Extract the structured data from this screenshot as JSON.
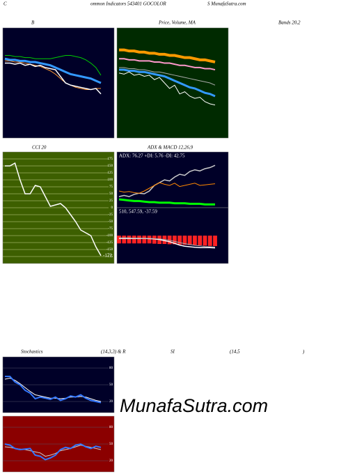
{
  "header": {
    "parts": [
      "C",
      "ommon Indicators 543401 GOCOLOR",
      "S MunafaSutra.com"
    ]
  },
  "watermark": "MunafaSutra.com",
  "chart_data": [
    {
      "type": "line",
      "title_parts": [
        "B",
        "Bands 20,2"
      ],
      "ylim": [
        0,
        100
      ],
      "series": [
        {
          "color": "#00cc00",
          "width": 1,
          "values": [
            75,
            75,
            74,
            74,
            73,
            73,
            72,
            72,
            72,
            72,
            73,
            74,
            75,
            75,
            74,
            73,
            71,
            68,
            64,
            57
          ]
        },
        {
          "color": "#ff9933",
          "width": 1,
          "values": [
            70,
            70,
            69,
            69,
            68,
            67,
            66,
            65,
            63,
            61,
            58,
            54,
            50,
            48,
            46,
            45,
            44,
            44,
            45,
            45
          ]
        },
        {
          "color": "#3399ff",
          "width": 3,
          "values": [
            72,
            71,
            71,
            70,
            70,
            69,
            69,
            68,
            67,
            66,
            64,
            62,
            60,
            58,
            57,
            56,
            55,
            54,
            52,
            50
          ]
        },
        {
          "color": "#ffffff",
          "width": 1.5,
          "values": [
            68,
            68,
            67,
            68,
            66,
            67,
            65,
            66,
            64,
            63,
            62,
            56,
            50,
            48,
            47,
            46,
            45,
            44,
            45,
            40
          ]
        }
      ]
    },
    {
      "type": "line",
      "title_parts": [
        "Price, Volume, MA"
      ],
      "ylim": [
        0,
        100
      ],
      "series": [
        {
          "color": "#ff9900",
          "width": 4,
          "values": [
            80,
            80,
            79,
            79,
            78,
            78,
            77,
            77,
            76,
            76,
            75,
            75,
            74,
            73,
            73,
            72,
            71,
            71,
            70,
            69
          ]
        },
        {
          "color": "#ff99cc",
          "width": 2,
          "values": [
            72,
            72,
            71,
            71,
            70,
            70,
            70,
            69,
            69,
            68,
            68,
            67,
            66,
            66,
            65,
            64,
            64,
            63,
            63,
            62
          ]
        },
        {
          "color": "#aaaaaa",
          "width": 1,
          "values": [
            64,
            64,
            63,
            63,
            62,
            62,
            61,
            60,
            60,
            59,
            58,
            57,
            56,
            55,
            54,
            53,
            52,
            51,
            50,
            48
          ]
        },
        {
          "color": "#3399ff",
          "width": 3,
          "values": [
            62,
            62,
            61,
            61,
            60,
            60,
            59,
            58,
            57,
            56,
            54,
            52,
            50,
            48,
            46,
            45,
            43,
            41,
            40,
            38
          ]
        },
        {
          "color": "#ffffff",
          "width": 1,
          "values": [
            59,
            58,
            60,
            57,
            58,
            56,
            57,
            53,
            55,
            50,
            45,
            48,
            40,
            42,
            38,
            36,
            37,
            33,
            31,
            30
          ]
        }
      ]
    },
    {
      "type": "line",
      "title_parts": [
        "CCI 20"
      ],
      "ylim": [
        -200,
        200
      ],
      "grid": true,
      "yticks": [
        175,
        150,
        125,
        100,
        75,
        50,
        25,
        0,
        -25,
        -50,
        -75,
        -100,
        -125,
        -150,
        -175
      ],
      "end_label": "-172",
      "series": [
        {
          "color": "#ffffff",
          "width": 1.5,
          "values": [
            150,
            150,
            160,
            100,
            50,
            50,
            80,
            75,
            40,
            5,
            10,
            15,
            0,
            -25,
            -50,
            -80,
            -90,
            -100,
            -140,
            -172
          ]
        }
      ]
    },
    {
      "type": "line",
      "title_parts": [
        "ADX  & MACD 12,26,9"
      ],
      "note": "ADX: 76.27  +DI: 5.76  -DI: 42.75",
      "ylim": [
        0,
        100
      ],
      "series": [
        {
          "color": "#cccccc",
          "width": 1.5,
          "values": [
            20,
            22,
            20,
            24,
            26,
            25,
            30,
            40,
            45,
            50,
            48,
            55,
            60,
            58,
            65,
            68,
            66,
            70,
            72,
            76
          ]
        },
        {
          "color": "#ff8800",
          "width": 1,
          "values": [
            30,
            28,
            29,
            27,
            26,
            30,
            35,
            40,
            45,
            42,
            40,
            44,
            38,
            40,
            42,
            44,
            40,
            41,
            42,
            43
          ]
        },
        {
          "color": "#00ff00",
          "width": 3,
          "values": [
            15,
            14,
            13,
            12,
            12,
            11,
            10,
            10,
            9,
            9,
            9,
            8,
            8,
            8,
            7,
            7,
            7,
            6,
            6,
            6
          ]
        }
      ]
    },
    {
      "type": "macd",
      "note": "510,  547.59,  -37.59",
      "ylim": [
        -100,
        100
      ],
      "bar_color": "#ff2222",
      "bars": [
        -28,
        -28,
        -28,
        -28,
        -28,
        -28,
        -28,
        -29,
        -30,
        -30,
        -31,
        -31,
        -32,
        -33,
        -34,
        -34,
        -35,
        -36,
        -37,
        -37.59
      ],
      "series": [
        {
          "color": "#ffffff",
          "width": 1.5,
          "values": [
            -10,
            -10,
            -10,
            -10,
            -10,
            -10,
            -11,
            -12,
            -14,
            -18,
            -22,
            -28,
            -34,
            -38,
            -40,
            -42,
            -43,
            -43,
            -43,
            -44
          ]
        },
        {
          "color": "#aaaaaa",
          "width": 1,
          "values": [
            -8,
            -8,
            -8,
            -9,
            -9,
            -10,
            -10,
            -11,
            -12,
            -14,
            -17,
            -21,
            -25,
            -29,
            -32,
            -35,
            -37,
            -39,
            -40,
            -41
          ]
        }
      ]
    },
    {
      "type": "line",
      "title_parts": [
        "Stochastics",
        "(14,3,3) & R",
        "SI",
        "(14,5",
        ")"
      ],
      "ylim": [
        0,
        100
      ],
      "yticks": [
        80,
        50,
        20
      ],
      "grid": true,
      "series": [
        {
          "color": "#ffffff",
          "width": 1,
          "values": [
            60,
            62,
            58,
            52,
            45,
            38,
            32,
            30,
            28,
            26,
            26,
            25,
            26,
            28,
            28,
            29,
            28,
            25,
            22,
            20
          ]
        },
        {
          "color": "#3377ff",
          "width": 2,
          "values": [
            65,
            65,
            55,
            50,
            40,
            35,
            25,
            28,
            26,
            24,
            28,
            22,
            25,
            30,
            28,
            32,
            26,
            22,
            20,
            18
          ]
        }
      ]
    },
    {
      "type": "line",
      "ylim": [
        0,
        100
      ],
      "yticks": [
        80,
        50,
        20
      ],
      "grid": true,
      "series": [
        {
          "color": "#cccccc",
          "width": 1,
          "values": [
            45,
            44,
            42,
            41,
            40,
            38,
            36,
            34,
            28,
            30,
            33,
            38,
            40,
            42,
            45,
            48,
            46,
            44,
            42,
            40
          ]
        },
        {
          "color": "#3377ff",
          "width": 2,
          "values": [
            50,
            48,
            42,
            40,
            41,
            42,
            30,
            28,
            22,
            25,
            30,
            40,
            44,
            42,
            48,
            50,
            45,
            42,
            46,
            44
          ]
        }
      ]
    }
  ]
}
